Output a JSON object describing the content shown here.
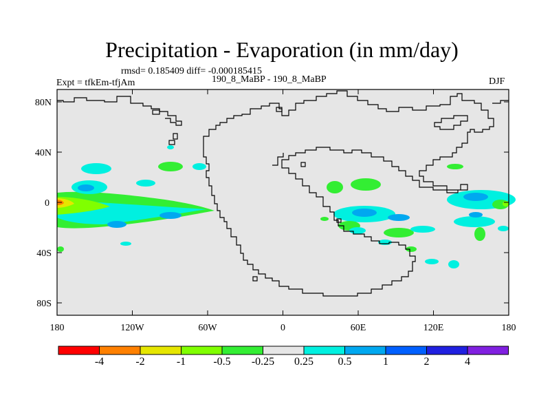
{
  "plot": {
    "title": "Precipitation - Evaporation (in mm/day)",
    "stats": "rmsd= 0.185409 diff= -0.000185415",
    "experiment": "Expt = tfkEm-tfjAm",
    "comparison": "190_8_MaBP - 190_8_MaBP",
    "season": "DJF",
    "lon_ticks": [
      "180",
      "120W",
      "60W",
      "0",
      "60E",
      "120E",
      "180"
    ],
    "lat_ticks": [
      "80N",
      "40N",
      "0",
      "40S",
      "80S"
    ]
  },
  "colorbar": {
    "colors": [
      "#ff0000",
      "#ff8000",
      "#e6e600",
      "#80ff00",
      "#33ee33",
      "#e6e6e6",
      "#00f0e0",
      "#00a8f0",
      "#0060ff",
      "#2020e0",
      "#8020e0"
    ],
    "labels": [
      "-4",
      "-2",
      "-1",
      "-0.5",
      "-0.25",
      "0.25",
      "0.5",
      "1",
      "2",
      "4"
    ]
  }
}
